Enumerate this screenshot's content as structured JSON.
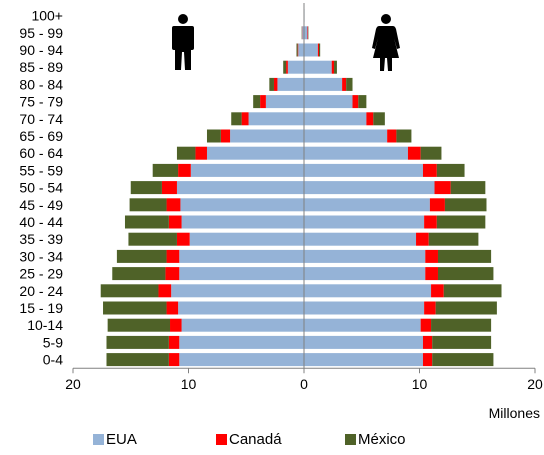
{
  "chart_data": {
    "type": "bar",
    "orientation": "horizontal",
    "layout": "population-pyramid",
    "title": "",
    "xlabel": "Millones",
    "xlim": [
      -20,
      20
    ],
    "x_tick_values": [
      -20,
      -10,
      0,
      10,
      20
    ],
    "x_tick_labels": [
      "20",
      "10",
      "0",
      "10",
      "20"
    ],
    "grid": false,
    "legend_position": "bottom",
    "colors": {
      "EUA": "#95B3D7",
      "Canadá": "#FF0000",
      "México": "#4F6228"
    },
    "categories": [
      "0-4",
      "5-9",
      "10-14",
      "15 - 19",
      "20 - 24",
      "25 - 29",
      "30 - 34",
      "35 - 39",
      "40 - 44",
      "45 - 49",
      "50 - 54",
      "55 - 59",
      "60 - 64",
      "65 - 69",
      "70 - 74",
      "75 - 79",
      "80 - 84",
      "85 - 89",
      "90 - 94",
      "95 - 99",
      "100+"
    ],
    "groups": [
      {
        "side": "left",
        "icon": "male-icon",
        "series": [
          {
            "name": "EUA",
            "values": [
              10.8,
              10.8,
              10.6,
              10.9,
              11.5,
              10.8,
              10.8,
              9.9,
              10.6,
              10.7,
              11.0,
              9.8,
              8.4,
              6.4,
              4.8,
              3.3,
              2.3,
              1.4,
              0.5,
              0.15,
              0.02
            ]
          },
          {
            "name": "Canadá",
            "values": [
              0.9,
              0.9,
              1.0,
              1.0,
              1.1,
              1.2,
              1.1,
              1.1,
              1.1,
              1.2,
              1.3,
              1.1,
              1.0,
              0.8,
              0.6,
              0.5,
              0.3,
              0.15,
              0.05,
              0.02,
              0.0
            ]
          },
          {
            "name": "México",
            "values": [
              5.4,
              5.4,
              5.4,
              5.5,
              5.0,
              4.6,
              4.3,
              4.2,
              3.8,
              3.2,
              2.7,
              2.2,
              1.6,
              1.2,
              0.9,
              0.6,
              0.4,
              0.25,
              0.1,
              0.03,
              0.0
            ]
          }
        ]
      },
      {
        "side": "right",
        "icon": "female-icon",
        "series": [
          {
            "name": "EUA",
            "values": [
              10.3,
              10.3,
              10.1,
              10.4,
              11.0,
              10.5,
              10.5,
              9.7,
              10.4,
              10.9,
              11.3,
              10.3,
              9.0,
              7.2,
              5.4,
              4.2,
              3.3,
              2.4,
              1.2,
              0.3,
              0.05
            ]
          },
          {
            "name": "Canadá",
            "values": [
              0.8,
              0.8,
              0.9,
              1.0,
              1.1,
              1.1,
              1.1,
              1.1,
              1.1,
              1.3,
              1.4,
              1.2,
              1.1,
              0.8,
              0.6,
              0.5,
              0.35,
              0.2,
              0.1,
              0.05,
              0.0
            ]
          },
          {
            "name": "México",
            "values": [
              5.3,
              5.1,
              5.2,
              5.3,
              5.0,
              4.8,
              4.6,
              4.3,
              4.2,
              3.6,
              3.0,
              2.4,
              1.8,
              1.3,
              1.0,
              0.7,
              0.55,
              0.25,
              0.1,
              0.03,
              0.0
            ]
          }
        ]
      }
    ],
    "legend": [
      "EUA",
      "Canadá",
      "México"
    ]
  }
}
